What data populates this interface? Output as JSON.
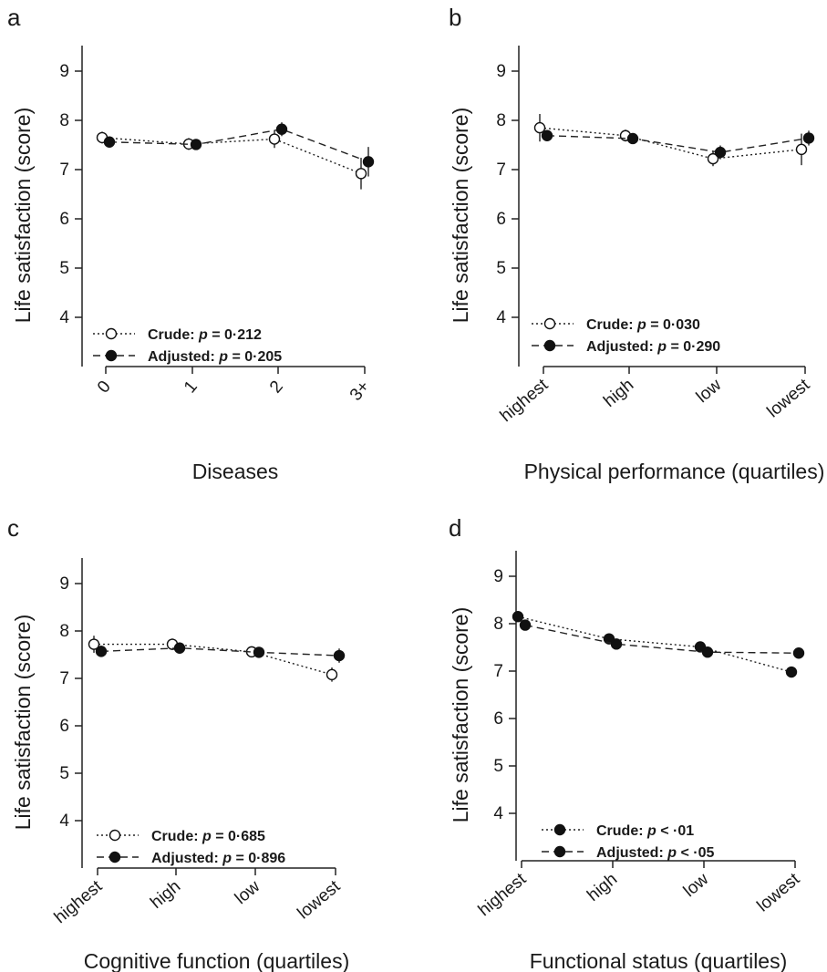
{
  "chart_data": [
    {
      "type": "line",
      "panel": "a",
      "categories": [
        "0",
        "1",
        "2",
        "3+"
      ],
      "xlabel": "Diseases",
      "ylabel": "Life satisfaction (score)",
      "ylim": [
        3.5,
        9.5
      ],
      "yticks": [
        "4",
        "5",
        "6",
        "7",
        "8",
        "9"
      ],
      "tick_rotation": "rotated",
      "legend_position": "bottom-left",
      "series": [
        {
          "name": "Crude: p = 0·212",
          "marker": "open",
          "line": "dotted",
          "values": [
            7.65,
            7.52,
            7.62,
            6.92
          ],
          "error": [
            0.12,
            0.12,
            0.18,
            0.32
          ]
        },
        {
          "name": "Adjusted: p = 0·205",
          "marker": "filled",
          "line": "dashed",
          "values": [
            7.56,
            7.51,
            7.82,
            7.16
          ],
          "error": [
            0.08,
            0.08,
            0.14,
            0.3
          ]
        }
      ],
      "legend": [
        {
          "label": "Crude: ",
          "p": "p",
          "value": " = 0·212"
        },
        {
          "label": "Adjusted: ",
          "p": "p",
          "value": " = 0·205"
        }
      ]
    },
    {
      "type": "line",
      "panel": "b",
      "categories": [
        "highest",
        "high",
        "low",
        "lowest"
      ],
      "xlabel": "Physical performance (quartiles)",
      "ylabel": "Life satisfaction (score)",
      "ylim": [
        3.5,
        9.5
      ],
      "yticks": [
        "4",
        "5",
        "6",
        "7",
        "8",
        "9"
      ],
      "tick_rotation": "rotated",
      "legend_position": "bottom-left",
      "series": [
        {
          "name": "Crude: p = 0·030",
          "marker": "open",
          "line": "dotted",
          "values": [
            7.85,
            7.69,
            7.22,
            7.41
          ],
          "error": [
            0.28,
            0.12,
            0.15,
            0.32
          ]
        },
        {
          "name": "Adjusted: p = 0·290",
          "marker": "filled",
          "line": "dashed",
          "values": [
            7.69,
            7.63,
            7.35,
            7.64
          ],
          "error": [
            0.1,
            0.1,
            0.14,
            0.15
          ]
        }
      ],
      "legend": [
        {
          "label": "Crude: ",
          "p": "p",
          "value": " = 0·030"
        },
        {
          "label": "Adjusted: ",
          "p": "p",
          "value": " = 0·290"
        }
      ]
    },
    {
      "type": "line",
      "panel": "c",
      "categories": [
        "highest",
        "high",
        "low",
        "lowest"
      ],
      "xlabel": "Cognitive function (quartiles)",
      "ylabel": "Life satisfaction (score)",
      "ylim": [
        3.0,
        9.5
      ],
      "yticks": [
        "4",
        "5",
        "6",
        "7",
        "8",
        "9"
      ],
      "tick_rotation": "rotated",
      "legend_position": "bottom-left",
      "series": [
        {
          "name": "Crude: p = 0·685",
          "marker": "open",
          "line": "dotted",
          "values": [
            7.72,
            7.72,
            7.56,
            7.08
          ],
          "error": [
            0.18,
            0.12,
            0.1,
            0.15
          ]
        },
        {
          "name": "Adjusted: p = 0·896",
          "marker": "filled",
          "line": "dashed",
          "values": [
            7.57,
            7.64,
            7.55,
            7.48
          ],
          "error": [
            0.12,
            0.12,
            0.1,
            0.15
          ]
        }
      ],
      "legend": [
        {
          "label": "Crude: ",
          "p": "p",
          "value": " = 0·685"
        },
        {
          "label": "Adjusted: ",
          "p": "p",
          "value": " = 0·896"
        }
      ]
    },
    {
      "type": "line",
      "panel": "d",
      "categories": [
        "highest",
        "high",
        "low",
        "lowest"
      ],
      "xlabel": "Functional status (quartiles)",
      "ylabel": "Life satisfaction (score)",
      "ylim": [
        3.0,
        9.5
      ],
      "yticks": [
        "4",
        "5",
        "6",
        "7",
        "8",
        "9"
      ],
      "tick_rotation": "rotated",
      "legend_position": "bottom-left",
      "series": [
        {
          "name": "Crude: p < ·01",
          "marker": "filled",
          "line": "dotted",
          "values": [
            8.15,
            7.68,
            7.51,
            6.98
          ],
          "error": [
            0.1,
            0.1,
            0.1,
            0.1
          ]
        },
        {
          "name": "Adjusted: p < ·05",
          "marker": "filled",
          "line": "dashed",
          "values": [
            7.97,
            7.57,
            7.4,
            7.38
          ],
          "error": [
            0.1,
            0.1,
            0.1,
            0.1
          ]
        }
      ],
      "legend": [
        {
          "label": "Crude: ",
          "p": "p",
          "value": " < ·01"
        },
        {
          "label": "Adjusted: ",
          "p": "p",
          "value": " < ·05"
        }
      ]
    }
  ]
}
